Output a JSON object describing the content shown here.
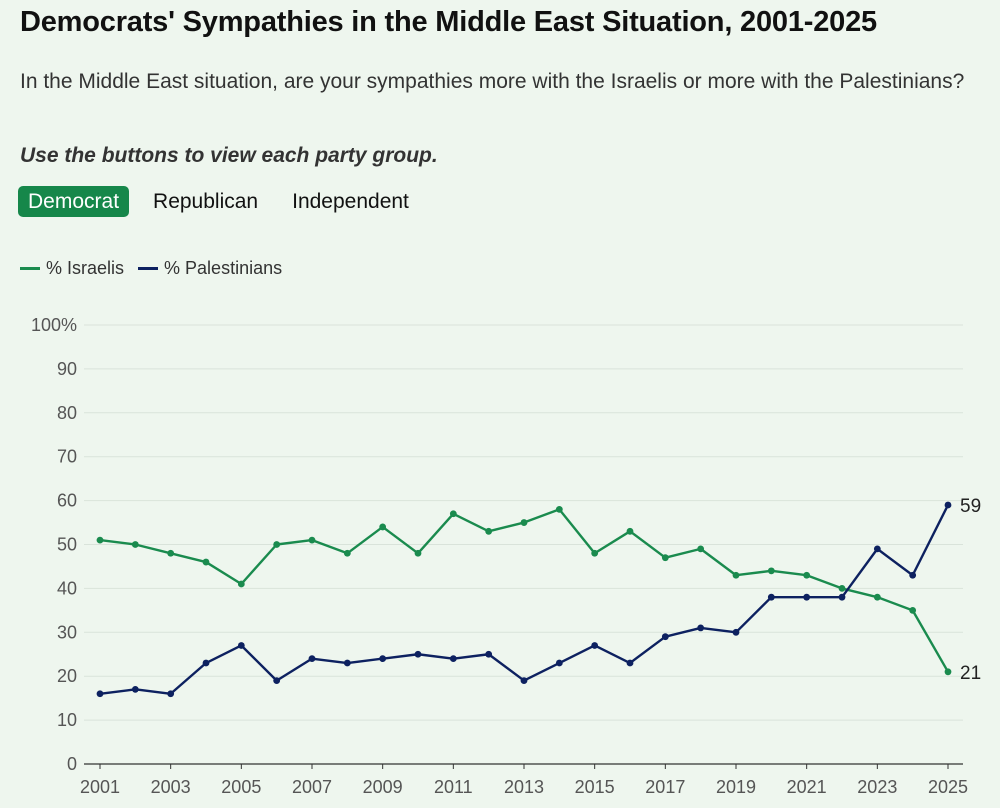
{
  "header": {
    "title": "Democrats' Sympathies in the Middle East Situation, 2001-2025",
    "subtitle": "In the Middle East situation, are your sympathies more with the Israelis or more with the Palestinians?",
    "instruction": "Use the buttons to view each party group."
  },
  "buttons": [
    {
      "label": "Democrat",
      "active": true
    },
    {
      "label": "Republican",
      "active": false
    },
    {
      "label": "Independent",
      "active": false
    }
  ],
  "colors": {
    "israelis": "#1a8b4e",
    "palestinians": "#0d2160",
    "grid": "#d9e3da",
    "active_button": "#16874a"
  },
  "chart_data": {
    "type": "line",
    "title": "Democrats' Sympathies in the Middle East Situation, 2001-2025",
    "xlabel": "",
    "ylabel": "",
    "x": [
      2001,
      2002,
      2003,
      2004,
      2005,
      2006,
      2007,
      2008,
      2009,
      2010,
      2011,
      2012,
      2013,
      2014,
      2015,
      2016,
      2017,
      2018,
      2019,
      2020,
      2021,
      2022,
      2023,
      2024,
      2025
    ],
    "x_tick_labels": [
      "2001",
      "2003",
      "2005",
      "2007",
      "2009",
      "2011",
      "2013",
      "2015",
      "2017",
      "2019",
      "2021",
      "2023",
      "2025"
    ],
    "x_ticks": [
      2001,
      2003,
      2005,
      2007,
      2009,
      2011,
      2013,
      2015,
      2017,
      2019,
      2021,
      2023,
      2025
    ],
    "y_tick_labels": [
      "0",
      "10",
      "20",
      "30",
      "40",
      "50",
      "60",
      "70",
      "80",
      "90",
      "100%"
    ],
    "y_ticks": [
      0,
      10,
      20,
      30,
      40,
      50,
      60,
      70,
      80,
      90,
      100
    ],
    "ylim": [
      0,
      100
    ],
    "xlim": [
      2001,
      2025
    ],
    "grid": true,
    "legend_position": "top-left",
    "series": [
      {
        "name": "% Israelis",
        "key": "israelis",
        "values": [
          51,
          50,
          48,
          46,
          41,
          50,
          51,
          48,
          54,
          48,
          57,
          53,
          55,
          58,
          48,
          53,
          47,
          49,
          43,
          44,
          43,
          40,
          38,
          35,
          21
        ],
        "end_label": "21"
      },
      {
        "name": "% Palestinians",
        "key": "palestinians",
        "values": [
          16,
          17,
          16,
          23,
          27,
          19,
          24,
          23,
          24,
          25,
          24,
          25,
          19,
          23,
          27,
          23,
          29,
          31,
          30,
          38,
          38,
          38,
          49,
          43,
          59
        ],
        "end_label": "59"
      }
    ]
  }
}
